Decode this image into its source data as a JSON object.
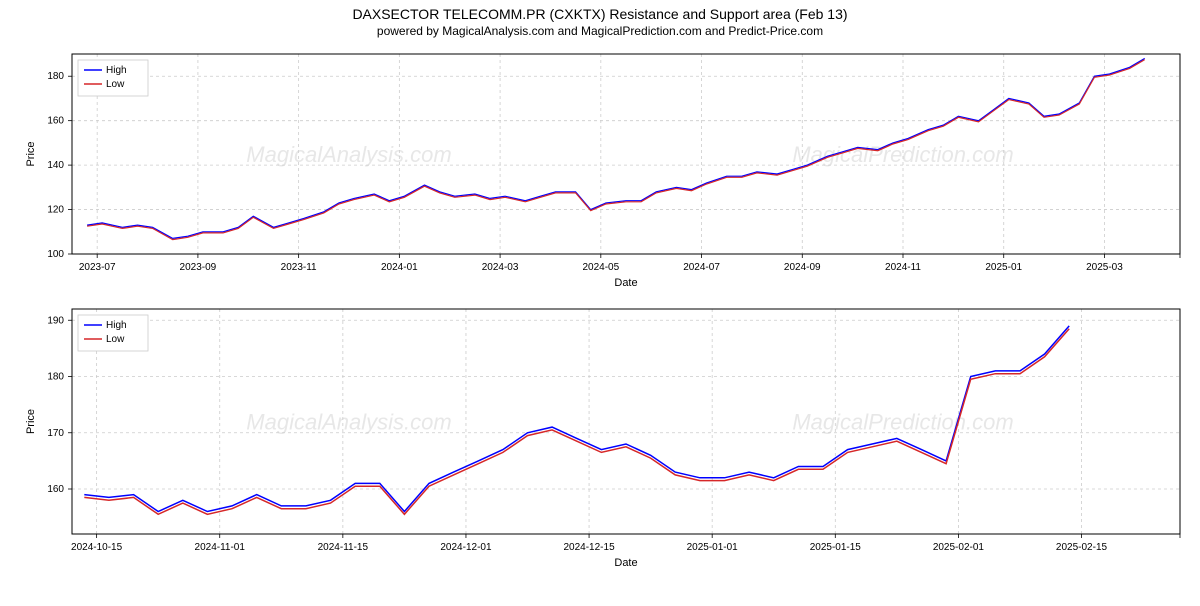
{
  "title": "DAXSECTOR TELECOMM.PR (CXKTX) Resistance and Support area (Feb 13)",
  "subtitle": "powered by MagicalAnalysis.com and MagicalPrediction.com and Predict-Price.com",
  "watermark_texts": [
    "MagicalAnalysis.com",
    "MagicalPrediction.com"
  ],
  "legend": {
    "items": [
      {
        "label": "High",
        "color": "#0000ff"
      },
      {
        "label": "Low",
        "color": "#d62728"
      }
    ]
  },
  "chart1": {
    "type": "line",
    "ylabel": "Price",
    "xlabel": "Date",
    "ylim": [
      100,
      190
    ],
    "yticks": [
      100,
      120,
      140,
      160,
      180
    ],
    "xlim": [
      0,
      22
    ],
    "xtick_positions": [
      0.5,
      2.5,
      4.5,
      6.5,
      8.5,
      10.5,
      12.5,
      14.5,
      16.5,
      18.5,
      20.5,
      22
    ],
    "xtick_labels": [
      "2023-07",
      "2023-09",
      "2023-11",
      "2024-01",
      "2024-03",
      "2024-05",
      "2024-07",
      "2024-09",
      "2024-11",
      "2025-01",
      "2025-03",
      ""
    ],
    "background_color": "#ffffff",
    "grid_color": "#cccccc",
    "border_color": "#000000",
    "line_width": 1.2,
    "series": [
      {
        "name": "High",
        "color": "#0000ff",
        "data": [
          [
            0.3,
            113
          ],
          [
            0.6,
            114
          ],
          [
            1.0,
            112
          ],
          [
            1.3,
            113
          ],
          [
            1.6,
            112
          ],
          [
            2.0,
            107
          ],
          [
            2.3,
            108
          ],
          [
            2.6,
            110
          ],
          [
            3.0,
            110
          ],
          [
            3.3,
            112
          ],
          [
            3.6,
            117
          ],
          [
            4.0,
            112
          ],
          [
            4.3,
            114
          ],
          [
            4.6,
            116
          ],
          [
            5.0,
            119
          ],
          [
            5.3,
            123
          ],
          [
            5.6,
            125
          ],
          [
            6.0,
            127
          ],
          [
            6.3,
            124
          ],
          [
            6.6,
            126
          ],
          [
            7.0,
            131
          ],
          [
            7.3,
            128
          ],
          [
            7.6,
            126
          ],
          [
            8.0,
            127
          ],
          [
            8.3,
            125
          ],
          [
            8.6,
            126
          ],
          [
            9.0,
            124
          ],
          [
            9.3,
            126
          ],
          [
            9.6,
            128
          ],
          [
            10.0,
            128
          ],
          [
            10.3,
            120
          ],
          [
            10.6,
            123
          ],
          [
            11.0,
            124
          ],
          [
            11.3,
            124
          ],
          [
            11.6,
            128
          ],
          [
            12.0,
            130
          ],
          [
            12.3,
            129
          ],
          [
            12.6,
            132
          ],
          [
            13.0,
            135
          ],
          [
            13.3,
            135
          ],
          [
            13.6,
            137
          ],
          [
            14.0,
            136
          ],
          [
            14.3,
            138
          ],
          [
            14.6,
            140
          ],
          [
            15.0,
            144
          ],
          [
            15.3,
            146
          ],
          [
            15.6,
            148
          ],
          [
            16.0,
            147
          ],
          [
            16.3,
            150
          ],
          [
            16.6,
            152
          ],
          [
            17.0,
            156
          ],
          [
            17.3,
            158
          ],
          [
            17.6,
            162
          ],
          [
            18.0,
            160
          ],
          [
            18.3,
            165
          ],
          [
            18.6,
            170
          ],
          [
            19.0,
            168
          ],
          [
            19.3,
            162
          ],
          [
            19.6,
            163
          ],
          [
            20.0,
            168
          ],
          [
            20.3,
            180
          ],
          [
            20.6,
            181
          ],
          [
            21.0,
            184
          ],
          [
            21.3,
            188
          ]
        ]
      },
      {
        "name": "Low",
        "color": "#d62728",
        "data": [
          [
            0.3,
            112.5
          ],
          [
            0.6,
            113.5
          ],
          [
            1.0,
            111.5
          ],
          [
            1.3,
            112.5
          ],
          [
            1.6,
            111.5
          ],
          [
            2.0,
            106.5
          ],
          [
            2.3,
            107.5
          ],
          [
            2.6,
            109.5
          ],
          [
            3.0,
            109.5
          ],
          [
            3.3,
            111.5
          ],
          [
            3.6,
            116.5
          ],
          [
            4.0,
            111.5
          ],
          [
            4.3,
            113.5
          ],
          [
            4.6,
            115.5
          ],
          [
            5.0,
            118.5
          ],
          [
            5.3,
            122.5
          ],
          [
            5.6,
            124.5
          ],
          [
            6.0,
            126.5
          ],
          [
            6.3,
            123.5
          ],
          [
            6.6,
            125.5
          ],
          [
            7.0,
            130.5
          ],
          [
            7.3,
            127.5
          ],
          [
            7.6,
            125.5
          ],
          [
            8.0,
            126.5
          ],
          [
            8.3,
            124.5
          ],
          [
            8.6,
            125.5
          ],
          [
            9.0,
            123.5
          ],
          [
            9.3,
            125.5
          ],
          [
            9.6,
            127.5
          ],
          [
            10.0,
            127.5
          ],
          [
            10.3,
            119.5
          ],
          [
            10.6,
            122.5
          ],
          [
            11.0,
            123.5
          ],
          [
            11.3,
            123.5
          ],
          [
            11.6,
            127.5
          ],
          [
            12.0,
            129.5
          ],
          [
            12.3,
            128.5
          ],
          [
            12.6,
            131.5
          ],
          [
            13.0,
            134.5
          ],
          [
            13.3,
            134.5
          ],
          [
            13.6,
            136.5
          ],
          [
            14.0,
            135.5
          ],
          [
            14.3,
            137.5
          ],
          [
            14.6,
            139.5
          ],
          [
            15.0,
            143.5
          ],
          [
            15.3,
            145.5
          ],
          [
            15.6,
            147.5
          ],
          [
            16.0,
            146.5
          ],
          [
            16.3,
            149.5
          ],
          [
            16.6,
            151.5
          ],
          [
            17.0,
            155.5
          ],
          [
            17.3,
            157.5
          ],
          [
            17.6,
            161.5
          ],
          [
            18.0,
            159.5
          ],
          [
            18.3,
            164.5
          ],
          [
            18.6,
            169.5
          ],
          [
            19.0,
            167.5
          ],
          [
            19.3,
            161.5
          ],
          [
            19.6,
            162.5
          ],
          [
            20.0,
            167.5
          ],
          [
            20.3,
            179.5
          ],
          [
            20.6,
            180.5
          ],
          [
            21.0,
            183.5
          ],
          [
            21.3,
            187.5
          ]
        ]
      }
    ]
  },
  "chart2": {
    "type": "line",
    "ylabel": "Price",
    "xlabel": "Date",
    "ylim": [
      152,
      192
    ],
    "yticks": [
      160,
      170,
      180,
      190
    ],
    "xlim": [
      0,
      9
    ],
    "xtick_positions": [
      0.2,
      1.2,
      2.2,
      3.2,
      4.2,
      5.2,
      6.2,
      7.2,
      8.2,
      9.0
    ],
    "xtick_labels": [
      "2024-10-15",
      "2024-11-01",
      "2024-11-15",
      "2024-12-01",
      "2024-12-15",
      "2025-01-01",
      "2025-01-15",
      "2025-02-01",
      "2025-02-15",
      ""
    ],
    "background_color": "#ffffff",
    "grid_color": "#cccccc",
    "border_color": "#000000",
    "line_width": 1.5,
    "series": [
      {
        "name": "High",
        "color": "#0000ff",
        "data": [
          [
            0.1,
            159
          ],
          [
            0.3,
            158.5
          ],
          [
            0.5,
            159
          ],
          [
            0.7,
            156
          ],
          [
            0.9,
            158
          ],
          [
            1.1,
            156
          ],
          [
            1.3,
            157
          ],
          [
            1.5,
            159
          ],
          [
            1.7,
            157
          ],
          [
            1.9,
            157
          ],
          [
            2.1,
            158
          ],
          [
            2.3,
            161
          ],
          [
            2.5,
            161
          ],
          [
            2.7,
            156
          ],
          [
            2.9,
            161
          ],
          [
            3.1,
            163
          ],
          [
            3.3,
            165
          ],
          [
            3.5,
            167
          ],
          [
            3.7,
            170
          ],
          [
            3.9,
            171
          ],
          [
            4.1,
            169
          ],
          [
            4.3,
            167
          ],
          [
            4.5,
            168
          ],
          [
            4.7,
            166
          ],
          [
            4.9,
            163
          ],
          [
            5.1,
            162
          ],
          [
            5.3,
            162
          ],
          [
            5.5,
            163
          ],
          [
            5.7,
            162
          ],
          [
            5.9,
            164
          ],
          [
            6.1,
            164
          ],
          [
            6.3,
            167
          ],
          [
            6.5,
            168
          ],
          [
            6.7,
            169
          ],
          [
            6.9,
            167
          ],
          [
            7.1,
            165
          ],
          [
            7.3,
            180
          ],
          [
            7.5,
            181
          ],
          [
            7.7,
            181
          ],
          [
            7.9,
            184
          ],
          [
            8.1,
            189
          ]
        ]
      },
      {
        "name": "Low",
        "color": "#d62728",
        "data": [
          [
            0.1,
            158.5
          ],
          [
            0.3,
            158
          ],
          [
            0.5,
            158.5
          ],
          [
            0.7,
            155.5
          ],
          [
            0.9,
            157.5
          ],
          [
            1.1,
            155.5
          ],
          [
            1.3,
            156.5
          ],
          [
            1.5,
            158.5
          ],
          [
            1.7,
            156.5
          ],
          [
            1.9,
            156.5
          ],
          [
            2.1,
            157.5
          ],
          [
            2.3,
            160.5
          ],
          [
            2.5,
            160.5
          ],
          [
            2.7,
            155.5
          ],
          [
            2.9,
            160.5
          ],
          [
            3.1,
            162.5
          ],
          [
            3.3,
            164.5
          ],
          [
            3.5,
            166.5
          ],
          [
            3.7,
            169.5
          ],
          [
            3.9,
            170.5
          ],
          [
            4.1,
            168.5
          ],
          [
            4.3,
            166.5
          ],
          [
            4.5,
            167.5
          ],
          [
            4.7,
            165.5
          ],
          [
            4.9,
            162.5
          ],
          [
            5.1,
            161.5
          ],
          [
            5.3,
            161.5
          ],
          [
            5.5,
            162.5
          ],
          [
            5.7,
            161.5
          ],
          [
            5.9,
            163.5
          ],
          [
            6.1,
            163.5
          ],
          [
            6.3,
            166.5
          ],
          [
            6.5,
            167.5
          ],
          [
            6.7,
            168.5
          ],
          [
            6.9,
            166.5
          ],
          [
            7.1,
            164.5
          ],
          [
            7.3,
            179.5
          ],
          [
            7.5,
            180.5
          ],
          [
            7.7,
            180.5
          ],
          [
            7.9,
            183.5
          ],
          [
            8.1,
            188.5
          ]
        ]
      }
    ]
  }
}
